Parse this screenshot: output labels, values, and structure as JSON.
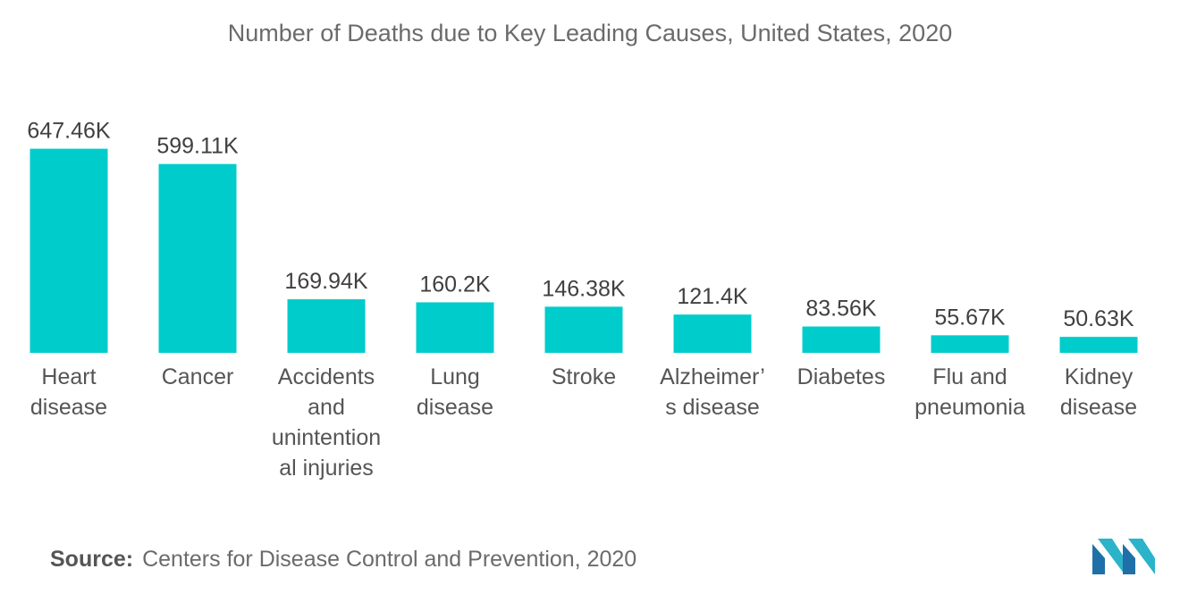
{
  "chart_data": {
    "type": "bar",
    "title": "Number of Deaths due to Key Leading Causes, United States, 2020",
    "categories": [
      [
        "Heart",
        "disease"
      ],
      [
        "Cancer"
      ],
      [
        "Accidents",
        "and",
        "unintention",
        "al injuries"
      ],
      [
        "Lung",
        "disease"
      ],
      [
        "Stroke"
      ],
      [
        "Alzheimer’",
        "s disease"
      ],
      [
        "Diabetes"
      ],
      [
        "Flu and",
        "pneumonia"
      ],
      [
        "Kidney",
        "disease"
      ]
    ],
    "values": [
      647.46,
      599.11,
      169.94,
      160.2,
      146.38,
      121.4,
      83.56,
      55.67,
      50.63
    ],
    "value_labels": [
      "647.46K",
      "599.11K",
      "169.94K",
      "160.2K",
      "146.38K",
      "121.4K",
      "83.56K",
      "55.67K",
      "50.63K"
    ],
    "unit": "K",
    "ylim": [
      0,
      700
    ],
    "grid": false,
    "legend": "none",
    "bar_color": "#00cccc"
  },
  "source": {
    "label": "Source:",
    "text": "Centers for Disease Control and Prevention, 2020"
  },
  "logo": {
    "icon": "mordor-intelligence-logo",
    "colors": [
      "#1f6fa8",
      "#2ab3c9"
    ]
  }
}
